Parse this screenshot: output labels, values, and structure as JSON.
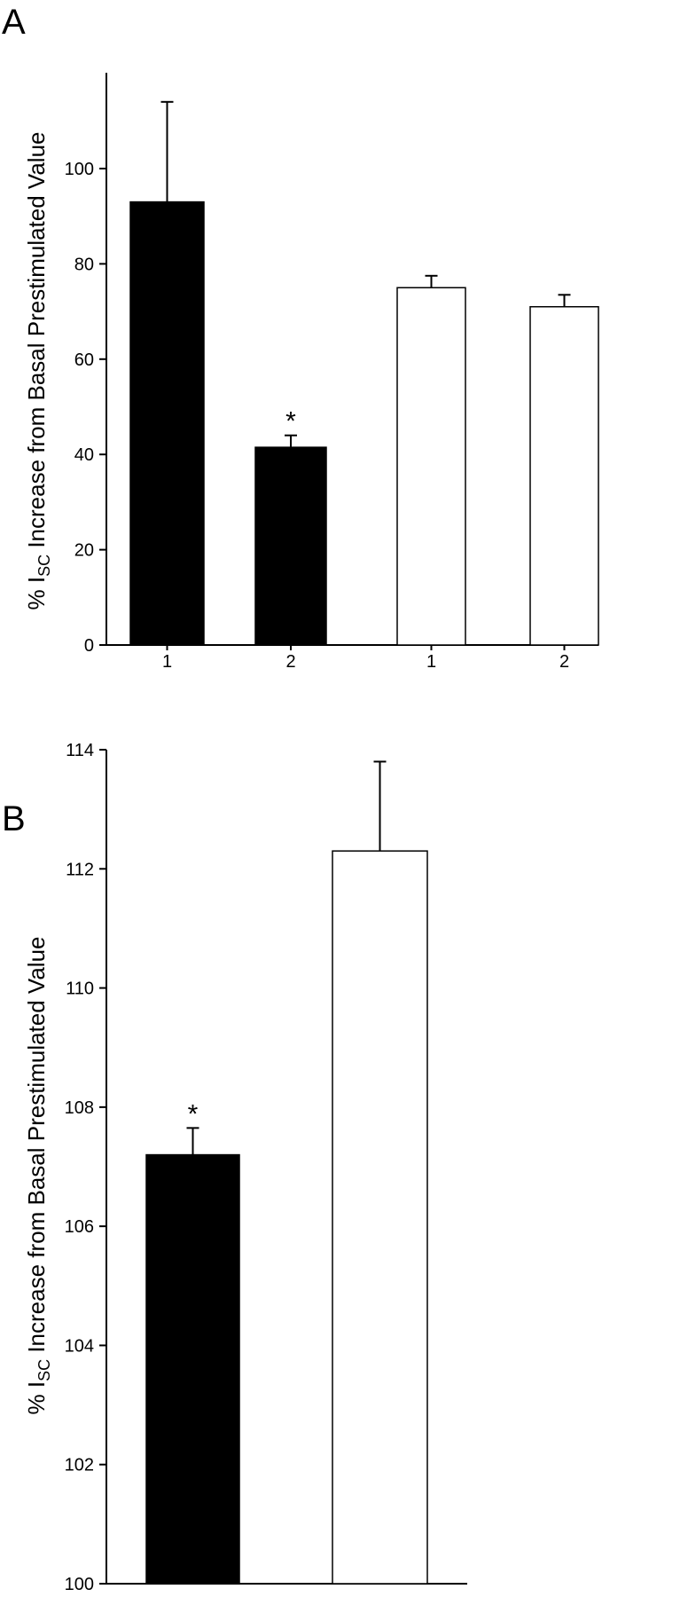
{
  "chart_data": [
    {
      "panel": "A",
      "type": "bar",
      "ylabel_prefix": "% I",
      "ylabel_subscript": "SC",
      "ylabel_suffix": " Increase from Basal Prestimulated Value",
      "ylim": [
        0,
        120
      ],
      "yticks": [
        0,
        20,
        40,
        60,
        80,
        100
      ],
      "categories": [
        "1",
        "2",
        "1",
        "2"
      ],
      "values": [
        93,
        41.5,
        75,
        71
      ],
      "errors": [
        21,
        2.5,
        2.5,
        2.5
      ],
      "fills": [
        "#000000",
        "#000000",
        "#ffffff",
        "#ffffff"
      ],
      "annotations": [
        "",
        "*",
        "",
        ""
      ],
      "grid": false
    },
    {
      "panel": "B",
      "type": "bar",
      "ylabel_prefix": "% I",
      "ylabel_subscript": "SC",
      "ylabel_suffix": " Increase from Basal Prestimulated Value",
      "ylim": [
        100,
        114
      ],
      "yticks": [
        100,
        102,
        104,
        106,
        108,
        110,
        112,
        114
      ],
      "categories": [
        "",
        ""
      ],
      "values": [
        107.2,
        112.3
      ],
      "errors": [
        0.45,
        1.5
      ],
      "fills": [
        "#000000",
        "#ffffff"
      ],
      "annotations": [
        "*",
        ""
      ],
      "grid": false
    }
  ]
}
